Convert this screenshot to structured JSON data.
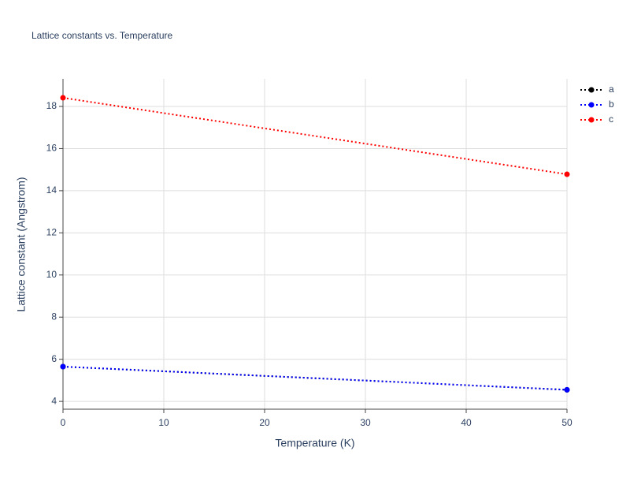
{
  "chart_data": {
    "type": "line",
    "title": "Lattice constants vs. Temperature",
    "x_label": "Temperature (K)",
    "y_label": "Lattice constant (Angstrom)",
    "x": [
      0,
      50
    ],
    "series": [
      {
        "name": "a",
        "color": "#000000",
        "values": [
          5.65,
          4.55
        ]
      },
      {
        "name": "b",
        "color": "#0000ff",
        "values": [
          5.65,
          4.55
        ]
      },
      {
        "name": "c",
        "color": "#ff0000",
        "values": [
          18.41,
          14.78
        ]
      }
    ],
    "xlim": [
      0,
      50
    ],
    "xticks": [
      0,
      10,
      20,
      30,
      40,
      50
    ],
    "ylim": [
      3.63,
      19.31
    ],
    "yticks": [
      4,
      6,
      8,
      10,
      12,
      14,
      16,
      18
    ],
    "grid": true,
    "legend": "top-right"
  }
}
